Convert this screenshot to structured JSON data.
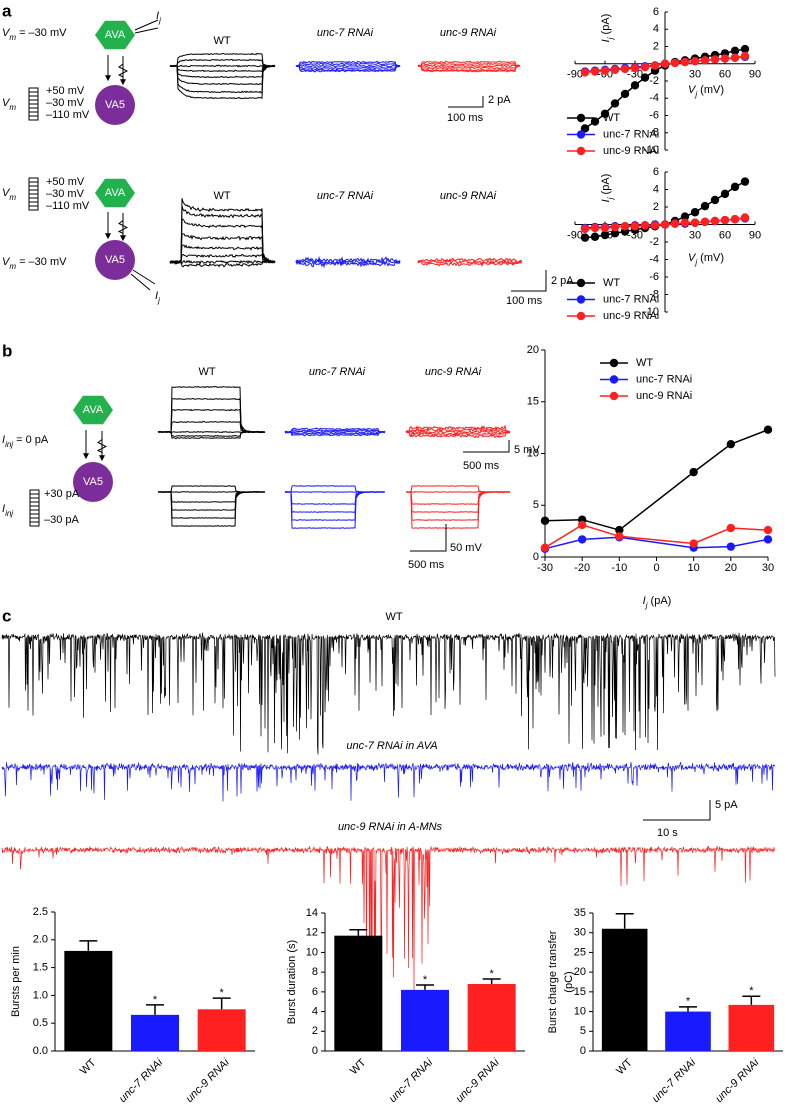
{
  "panel_labels": [
    "a",
    "b",
    "c"
  ],
  "panel_a": {
    "top": {
      "vm": {
        "text": "V",
        "sub": "m",
        "after": " = –30 mV"
      },
      "vm_steps": {
        "text": "V",
        "sub": "m"
      },
      "ij": {
        "text": "I",
        "sub": "j"
      },
      "pre": "AVA",
      "post": "VA5",
      "steps": [
        "+50 mV",
        "–30 mV",
        "–110 mV"
      ],
      "traces": [
        "WT",
        "unc-7 RNAi",
        "unc-9 RNAi"
      ],
      "scale": [
        "2 pA",
        "100 ms"
      ]
    },
    "bottom": {
      "vm": {
        "text": "V",
        "sub": "m",
        "after": " = –30 mV"
      },
      "vm_steps": {
        "text": "V",
        "sub": "m"
      },
      "ij": {
        "text": "I",
        "sub": "j"
      },
      "pre": "AVA",
      "post": "VA5",
      "steps": [
        "+50 mV",
        "–30 mV",
        "–110 mV"
      ],
      "traces": [
        "WT",
        "unc-7 RNAi",
        "unc-9 RNAi"
      ],
      "scale": [
        "2 pA",
        "100 ms"
      ]
    }
  },
  "panel_b": {
    "iinj": {
      "text": "I",
      "sub": "inj",
      "after": " = 0 pA"
    },
    "iinj_steps": {
      "text": "I",
      "sub": "inj"
    },
    "pre": "AVA",
    "post": "VA5",
    "steps": [
      "+30 pA",
      "–30 pA"
    ],
    "traces": [
      "WT",
      "unc-7 RNAi",
      "unc-9 RNAi"
    ],
    "scale_top": [
      "5 mV",
      "500 ms"
    ],
    "scale_bottom": [
      "50 mV",
      "500 ms"
    ]
  },
  "panel_c": {
    "traces": [
      "WT",
      "unc-7 RNAi in AVA",
      "unc-9 RNAi in A-MNs"
    ],
    "scale": [
      "5 pA",
      "10 s"
    ]
  },
  "chart_data": [
    {
      "type": "line",
      "ylabel": {
        "text": "I",
        "sub": "j",
        "after": " (pA)"
      },
      "xlabel": {
        "text": "V",
        "sub": "j",
        "after": " (mV)"
      },
      "x": [
        -80,
        -70,
        -60,
        -50,
        -40,
        -30,
        -20,
        -10,
        0,
        10,
        20,
        30,
        40,
        50,
        60,
        70,
        80
      ],
      "series": [
        {
          "name": "WT",
          "color": "#000000",
          "values": [
            -7.5,
            -6.7,
            -5.8,
            -4.6,
            -3.5,
            -2.5,
            -1.6,
            -0.8,
            -0.2,
            0.2,
            0.4,
            0.6,
            0.8,
            1.0,
            1.2,
            1.5,
            1.7
          ]
        },
        {
          "name": "unc-7 RNAi",
          "color": "#1a1aff",
          "values": [
            -0.9,
            -0.8,
            -0.7,
            -0.6,
            -0.5,
            -0.4,
            -0.3,
            -0.2,
            0,
            0.1,
            0.2,
            0.3,
            0.4,
            0.5,
            0.6,
            0.7,
            0.8
          ]
        },
        {
          "name": "unc-9 RNAi",
          "color": "#ff2020",
          "values": [
            -1.0,
            -0.9,
            -0.8,
            -0.7,
            -0.6,
            -0.5,
            -0.4,
            -0.2,
            0,
            0.1,
            0.2,
            0.3,
            0.4,
            0.5,
            0.6,
            0.7,
            0.9
          ]
        }
      ],
      "xlim": [
        -90,
        90
      ],
      "ylim": [
        -10,
        6
      ],
      "xticks": [
        -90,
        -60,
        -30,
        30,
        60,
        90
      ],
      "yticks": [
        -10,
        -8,
        -6,
        -4,
        -2,
        2,
        4,
        6
      ],
      "axes_cross_at_zero": true,
      "legend": "below"
    },
    {
      "type": "line",
      "ylabel": {
        "text": "I",
        "sub": "j",
        "after": " (pA)"
      },
      "xlabel": {
        "text": "V",
        "sub": "j",
        "after": " (mV)"
      },
      "x": [
        -80,
        -70,
        -60,
        -50,
        -40,
        -30,
        -20,
        -10,
        0,
        10,
        20,
        30,
        40,
        50,
        60,
        70,
        80
      ],
      "series": [
        {
          "name": "WT",
          "color": "#000000",
          "values": [
            -1.5,
            -1.4,
            -1.2,
            -1.0,
            -0.8,
            -0.6,
            -0.4,
            -0.2,
            0,
            0.4,
            0.9,
            1.4,
            2.1,
            2.8,
            3.5,
            4.3,
            4.9
          ]
        },
        {
          "name": "unc-7 RNAi",
          "color": "#1a1aff",
          "values": [
            -0.4,
            -0.3,
            -0.3,
            -0.2,
            -0.2,
            -0.1,
            -0.1,
            0,
            0,
            0.1,
            0.1,
            0.2,
            0.3,
            0.4,
            0.5,
            0.6,
            0.7
          ]
        },
        {
          "name": "unc-9 RNAi",
          "color": "#ff2020",
          "values": [
            -0.5,
            -0.4,
            -0.4,
            -0.3,
            -0.2,
            -0.2,
            -0.1,
            -0.1,
            0,
            0.1,
            0.2,
            0.2,
            0.3,
            0.4,
            0.5,
            0.6,
            0.8
          ]
        }
      ],
      "xlim": [
        -90,
        90
      ],
      "ylim": [
        -10,
        6
      ],
      "xticks": [
        -90,
        -60,
        -30,
        30,
        60,
        90
      ],
      "yticks": [
        -10,
        -8,
        -6,
        -4,
        -2,
        2,
        4,
        6
      ],
      "axes_cross_at_zero": true,
      "legend": "below"
    },
    {
      "type": "line",
      "xlabel": {
        "text": "I",
        "sub": "j",
        "after": " (pA)"
      },
      "x": [
        -30,
        -20,
        -10,
        10,
        20,
        30
      ],
      "series": [
        {
          "name": "WT",
          "color": "#000000",
          "values": [
            3.5,
            3.6,
            2.6,
            8.2,
            10.9,
            12.3
          ]
        },
        {
          "name": "unc-7 RNAi",
          "color": "#1a1aff",
          "values": [
            0.8,
            1.7,
            1.9,
            0.9,
            1.0,
            1.7
          ]
        },
        {
          "name": "unc-9 RNAi",
          "color": "#ff2020",
          "values": [
            0.9,
            3.1,
            2.0,
            1.3,
            2.8,
            2.6
          ]
        }
      ],
      "xlim": [
        -30,
        30
      ],
      "ylim": [
        0,
        20
      ],
      "xticks": [
        -30,
        -20,
        -10,
        0,
        10,
        20,
        30
      ],
      "yticks": [
        0,
        5,
        10,
        15,
        20
      ],
      "legend": "upper-right"
    },
    {
      "type": "bar",
      "ylabel": [
        "Bursts per min"
      ],
      "categories": [
        "WT",
        "unc-7 RNAi",
        "unc-9 RNAi"
      ],
      "values": [
        1.8,
        0.65,
        0.75
      ],
      "errors": [
        0.18,
        0.18,
        0.2
      ],
      "colors": [
        "#000000",
        "#1a1aff",
        "#ff2020"
      ],
      "annotations": [
        null,
        "*",
        "*"
      ],
      "ylim": [
        0,
        2.5
      ],
      "yticks": [
        {
          "value": 0,
          "label": "0.0"
        },
        0.5,
        {
          "value": 1,
          "label": "1.0"
        },
        1.5,
        {
          "value": 2,
          "label": "2.0"
        },
        2.5
      ]
    },
    {
      "type": "bar",
      "ylabel": [
        "Burst duration (s)"
      ],
      "categories": [
        "WT",
        "unc-7 RNAi",
        "unc-9 RNAi"
      ],
      "values": [
        11.7,
        6.2,
        6.8
      ],
      "errors": [
        0.6,
        0.5,
        0.5
      ],
      "colors": [
        "#000000",
        "#1a1aff",
        "#ff2020"
      ],
      "annotations": [
        null,
        "*",
        "*"
      ],
      "ylim": [
        0,
        14
      ],
      "yticks": [
        0,
        2,
        4,
        6,
        8,
        10,
        12,
        14
      ]
    },
    {
      "type": "bar",
      "ylabel": [
        "Burst charge transfer",
        "(pC)"
      ],
      "categories": [
        "WT",
        "unc-7 RNAi",
        "unc-9 RNAi"
      ],
      "values": [
        31,
        10,
        11.7
      ],
      "errors": [
        3.8,
        1.2,
        2.2
      ],
      "colors": [
        "#000000",
        "#1a1aff",
        "#ff2020"
      ],
      "annotations": [
        null,
        "*",
        "*"
      ],
      "ylim": [
        0,
        35
      ],
      "yticks": [
        0,
        5,
        10,
        15,
        20,
        25,
        30,
        35
      ]
    }
  ]
}
